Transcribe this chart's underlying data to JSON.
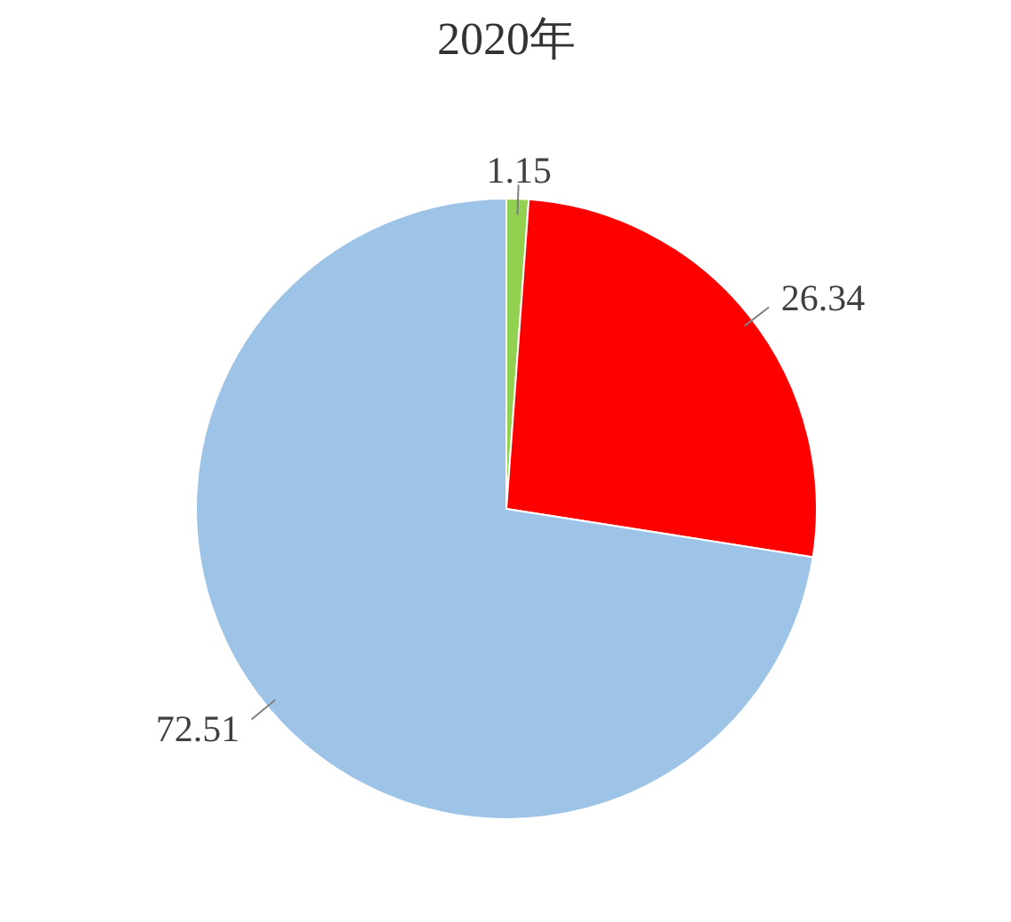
{
  "chart_data": {
    "type": "pie",
    "title": "2020年",
    "categories": [
      null,
      null,
      null
    ],
    "values": [
      1.15,
      26.34,
      72.51
    ],
    "colors": [
      "#92d050",
      "#ff0000",
      "#9dc3e6"
    ],
    "data_labels": true,
    "legend": false
  }
}
